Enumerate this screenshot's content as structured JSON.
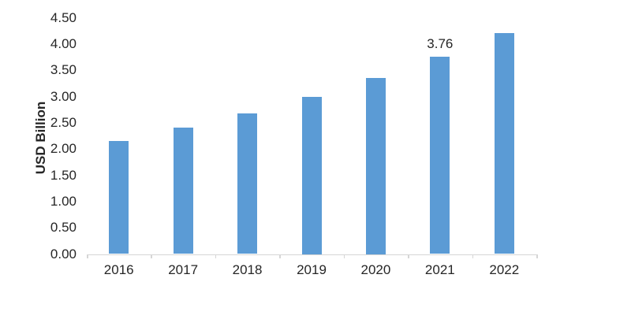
{
  "chart_data": {
    "type": "bar",
    "title": "",
    "xlabel": "",
    "ylabel": "USD Billion",
    "categories": [
      "2016",
      "2017",
      "2018",
      "2019",
      "2020",
      "2021",
      "2022"
    ],
    "values": [
      2.15,
      2.41,
      2.68,
      3.0,
      3.36,
      3.76,
      4.21
    ],
    "data_labels": [
      null,
      null,
      null,
      null,
      null,
      "3.76",
      null
    ],
    "ylim": [
      0,
      4.5
    ],
    "ytick_step": 0.5,
    "ytick_labels": [
      "0.00",
      "0.50",
      "1.00",
      "1.50",
      "2.00",
      "2.50",
      "3.00",
      "3.50",
      "4.00",
      "4.50"
    ],
    "grid": false,
    "legend": "none",
    "bar_color": "#5b9bd5",
    "axis_color": "#d6d6d6",
    "text_color": "#262626"
  }
}
